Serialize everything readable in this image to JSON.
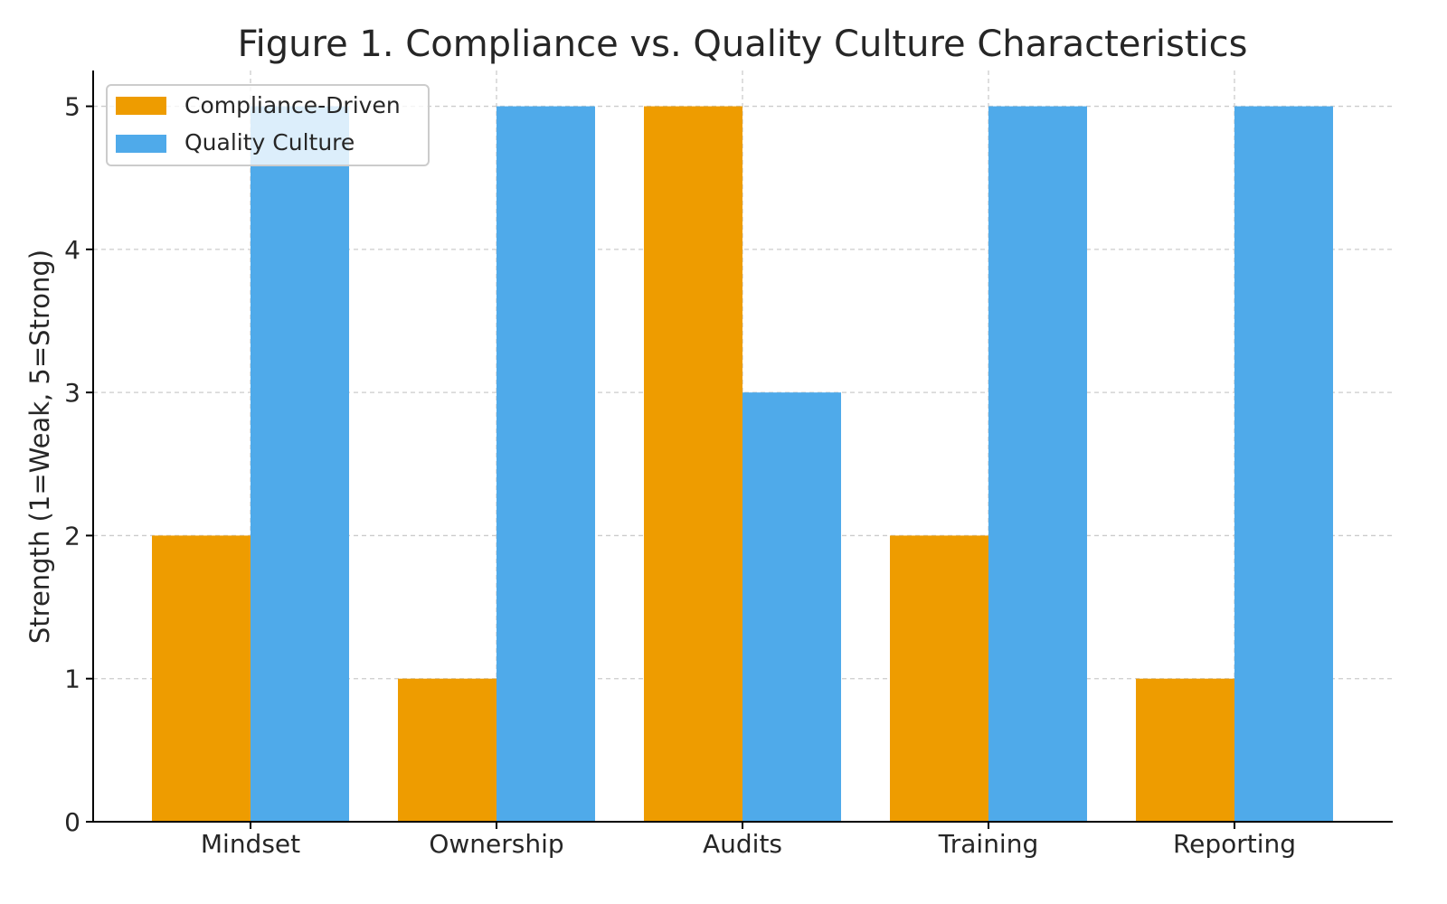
{
  "chart_data": {
    "type": "bar",
    "title": "Figure 1. Compliance vs. Quality Culture Characteristics",
    "xlabel": "",
    "ylabel": "Strength (1=Weak, 5=Strong)",
    "categories": [
      "Mindset",
      "Ownership",
      "Audits",
      "Training",
      "Reporting"
    ],
    "series": [
      {
        "name": "Compliance-Driven",
        "values": [
          2,
          1,
          5,
          2,
          1
        ],
        "color": "#EE9C00"
      },
      {
        "name": "Quality Culture",
        "values": [
          5,
          5,
          3,
          5,
          5
        ],
        "color": "#4FAAEA"
      }
    ],
    "yticks": [
      "0",
      "1",
      "2",
      "3",
      "4",
      "5"
    ],
    "ylim": [
      0,
      5.25
    ],
    "grid": true,
    "legend_position": "top-left"
  }
}
